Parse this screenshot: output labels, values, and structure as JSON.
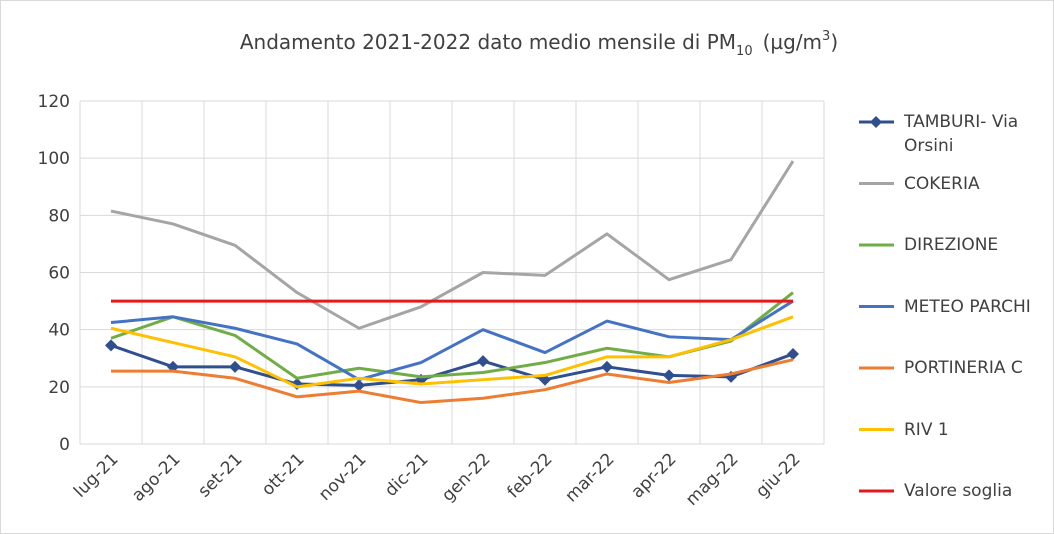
{
  "chart_data": {
    "type": "line",
    "title_parts": [
      "Andamento 2021-2022 dato medio mensile di PM",
      "10",
      "(µg/m",
      "3",
      ")"
    ],
    "categories": [
      "lug-21",
      "ago-21",
      "set-21",
      "ott-21",
      "nov-21",
      "dic-21",
      "gen-22",
      "feb-22",
      "mar-22",
      "apr-22",
      "mag-22",
      "giu-22"
    ],
    "ylim": [
      0,
      120
    ],
    "yticks": [
      0,
      20,
      40,
      60,
      80,
      100,
      120
    ],
    "grid": true,
    "series": [
      {
        "name": "TAMBURI- Via Orsini",
        "color": "#2f4f8f",
        "marker": "diamond",
        "values": [
          34.5,
          27,
          27,
          21,
          20.5,
          22.5,
          29,
          22.5,
          27,
          24,
          23.5,
          31.5
        ]
      },
      {
        "name": "COKERIA",
        "color": "#a5a5a5",
        "values": [
          81.5,
          77,
          69.5,
          53,
          40.5,
          48,
          60,
          59,
          73.5,
          57.5,
          64.5,
          99
        ]
      },
      {
        "name": "DIREZIONE",
        "color": "#70ad47",
        "values": [
          37,
          44.5,
          38,
          23,
          26.5,
          23.5,
          25,
          28.5,
          33.5,
          30.5,
          36,
          53
        ]
      },
      {
        "name": "METEO PARCHI",
        "color": "#4472c4",
        "values": [
          42.5,
          44.5,
          40.5,
          35,
          22.5,
          28.5,
          40,
          32,
          43,
          37.5,
          36.5,
          50
        ]
      },
      {
        "name": "PORTINERIA C",
        "color": "#ed7d31",
        "values": [
          25.5,
          25.5,
          23,
          16.5,
          18.5,
          14.5,
          16,
          19,
          24.5,
          21.5,
          24.5,
          29.5
        ]
      },
      {
        "name": "RIV 1",
        "color": "#ffc000",
        "values": [
          40.5,
          35.5,
          30.5,
          20,
          23,
          21,
          22.5,
          24,
          30.5,
          30.5,
          36.5,
          44.5
        ]
      },
      {
        "name": "Valore soglia",
        "color": "#e31a1c",
        "values": [
          50,
          50,
          50,
          50,
          50,
          50,
          50,
          50,
          50,
          50,
          50,
          50
        ]
      }
    ]
  }
}
